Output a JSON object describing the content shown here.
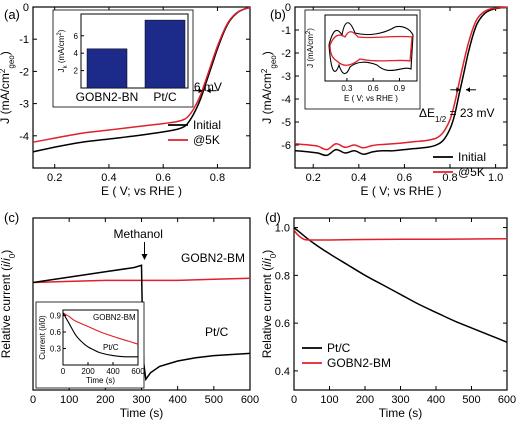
{
  "panels": [
    {
      "id": "a",
      "panel_label": "(a)",
      "type": "line",
      "xlabel": "E ( V; vs RHE )",
      "ylabel": "J (mA/cm²geo)",
      "xlim": [
        0.12,
        0.92
      ],
      "ylim": [
        -5.0,
        0.0
      ],
      "xticks": [
        0.2,
        0.4,
        0.6,
        0.8
      ],
      "xtick_labels": [
        "0.2",
        "0.4",
        "0.6",
        "0.8"
      ],
      "yticks": [
        -4,
        -3,
        -2,
        -1,
        0
      ],
      "ytick_labels": [
        "-4",
        "-3",
        "-2",
        "-1",
        "0"
      ],
      "legend": [
        "Initial",
        "@5K"
      ],
      "legend_position": "bottom-right",
      "series": [
        {
          "name": "Initial",
          "color": "#000000",
          "x": [
            0.12,
            0.2,
            0.3,
            0.4,
            0.5,
            0.6,
            0.65,
            0.68,
            0.7,
            0.72,
            0.74,
            0.76,
            0.78,
            0.8,
            0.82,
            0.84,
            0.86,
            0.88,
            0.9,
            0.92
          ],
          "y": [
            -4.5,
            -4.35,
            -4.2,
            -4.1,
            -4.0,
            -3.88,
            -3.8,
            -3.7,
            -3.5,
            -3.2,
            -2.8,
            -2.3,
            -1.8,
            -1.3,
            -0.85,
            -0.5,
            -0.28,
            -0.14,
            -0.06,
            -0.02
          ]
        },
        {
          "name": "@5K",
          "color": "#e0202a",
          "x": [
            0.12,
            0.2,
            0.3,
            0.4,
            0.5,
            0.6,
            0.65,
            0.68,
            0.7,
            0.72,
            0.74,
            0.76,
            0.78,
            0.8,
            0.82,
            0.84,
            0.86,
            0.88,
            0.9,
            0.92
          ],
          "y": [
            -4.2,
            -4.07,
            -3.92,
            -3.82,
            -3.72,
            -3.62,
            -3.56,
            -3.48,
            -3.32,
            -3.05,
            -2.68,
            -2.2,
            -1.7,
            -1.22,
            -0.8,
            -0.47,
            -0.26,
            -0.13,
            -0.06,
            -0.02
          ]
        }
      ],
      "annotation": "ΔE1/2 = 6 mV",
      "inset": {
        "type": "bar",
        "categories": [
          "GOBN2-BN",
          "Pt/C"
        ],
        "values": [
          4.5,
          7.8
        ],
        "ylim": [
          0,
          8.5
        ],
        "yticks": [
          2,
          4,
          6
        ],
        "ytick_labels": [
          "2",
          "4",
          "6"
        ],
        "ylabel": "Jk (mA/cm²)",
        "bar_color": "#1c2a8a"
      }
    },
    {
      "id": "b",
      "panel_label": "(b)",
      "type": "line",
      "xlabel": "E ( V; vs RHE )",
      "ylabel": "J (mA/cm²geo)",
      "xlim": [
        0.12,
        1.05
      ],
      "ylim": [
        -7.0,
        0.0
      ],
      "xticks": [
        0.2,
        0.4,
        0.6,
        0.8,
        1.0
      ],
      "xtick_labels": [
        "0.2",
        "0.4",
        "0.6",
        "0.8",
        "1.0"
      ],
      "yticks": [
        -6,
        -5,
        -4,
        -3,
        -2,
        -1,
        0
      ],
      "ytick_labels": [
        "-6",
        "-5",
        "-4",
        "-3",
        "-2",
        "-1",
        "0"
      ],
      "legend": [
        "Initial",
        "@5K"
      ],
      "legend_position": "bottom-right",
      "series": [
        {
          "name": "Initial",
          "color": "#000000",
          "x": [
            0.12,
            0.18,
            0.22,
            0.26,
            0.3,
            0.34,
            0.38,
            0.42,
            0.46,
            0.5,
            0.55,
            0.6,
            0.65,
            0.7,
            0.74,
            0.77,
            0.8,
            0.82,
            0.84,
            0.86,
            0.88,
            0.9,
            0.92,
            0.95,
            0.98,
            1.02,
            1.05
          ],
          "y": [
            -6.25,
            -6.3,
            -6.35,
            -6.45,
            -6.2,
            -6.35,
            -6.25,
            -6.4,
            -6.3,
            -6.25,
            -6.25,
            -6.2,
            -6.15,
            -6.1,
            -6.0,
            -5.8,
            -5.3,
            -4.7,
            -3.8,
            -2.9,
            -2.0,
            -1.25,
            -0.7,
            -0.3,
            -0.12,
            -0.04,
            -0.02
          ]
        },
        {
          "name": "@5K",
          "color": "#e0202a",
          "x": [
            0.12,
            0.18,
            0.22,
            0.26,
            0.3,
            0.34,
            0.38,
            0.42,
            0.46,
            0.5,
            0.55,
            0.6,
            0.65,
            0.7,
            0.74,
            0.77,
            0.8,
            0.82,
            0.84,
            0.86,
            0.88,
            0.9,
            0.92,
            0.95,
            0.98,
            1.02,
            1.05
          ],
          "y": [
            -5.95,
            -6.0,
            -6.05,
            -6.2,
            -5.95,
            -6.1,
            -6.0,
            -6.12,
            -6.02,
            -5.98,
            -5.95,
            -5.9,
            -5.85,
            -5.8,
            -5.7,
            -5.45,
            -4.9,
            -4.2,
            -3.3,
            -2.4,
            -1.6,
            -0.95,
            -0.5,
            -0.2,
            -0.08,
            -0.03,
            -0.01
          ]
        }
      ],
      "annotation": "ΔE1/2 = 23 mV",
      "inset": {
        "type": "line",
        "xlim": [
          0.05,
          1.1
        ],
        "xticks": [
          0.3,
          0.6,
          0.9
        ],
        "xtick_labels": [
          "0.3",
          "0.6",
          "0.9"
        ],
        "xlabel": "E ( V; vs RHE )",
        "ylabel": "J (mA/cm²)",
        "series": [
          {
            "name": "Initial",
            "color": "#000000"
          },
          {
            "name": "@5K",
            "color": "#e0202a"
          }
        ]
      }
    },
    {
      "id": "c",
      "panel_label": "(c)",
      "type": "line",
      "xlabel": "Time (s)",
      "ylabel": "Relative current (i/i0)",
      "xlim": [
        0,
        600
      ],
      "ylim": [
        0.0,
        1.6
      ],
      "xticks": [
        0,
        100,
        200,
        300,
        400,
        500,
        600
      ],
      "xtick_labels": [
        "0",
        "100",
        "200",
        "300",
        "400",
        "500",
        "600"
      ],
      "yticks": [],
      "ytick_labels": [],
      "annotation": "Methanol",
      "series": [
        {
          "name": "GOBN2-BM",
          "color": "#e0202a",
          "x": [
            0,
            100,
            200,
            300,
            310,
            400,
            500,
            600
          ],
          "y": [
            1.0,
            1.01,
            1.02,
            1.02,
            1.02,
            1.02,
            1.03,
            1.04
          ]
        },
        {
          "name": "Pt/C",
          "color": "#000000",
          "x": [
            0,
            100,
            200,
            280,
            300,
            303,
            306,
            312,
            325,
            350,
            400,
            450,
            500,
            550,
            600
          ],
          "y": [
            1.0,
            1.05,
            1.1,
            1.14,
            1.16,
            0.55,
            0.25,
            0.1,
            0.16,
            0.22,
            0.27,
            0.3,
            0.32,
            0.33,
            0.34
          ]
        }
      ],
      "series_labels": [
        "GOBN2-BM",
        "Pt/C"
      ],
      "inset": {
        "type": "line",
        "xlim": [
          0,
          600
        ],
        "ylim": [
          0.0,
          1.0
        ],
        "xticks": [
          0,
          200,
          400,
          600
        ],
        "xtick_labels": [
          "0",
          "200",
          "400",
          "600"
        ],
        "yticks": [
          0.3,
          0.6,
          0.9
        ],
        "ytick_labels": [
          "0.3",
          "0.6",
          "0.9"
        ],
        "xlabel": "Time (s)",
        "ylabel": "Current (i/i0)",
        "series": [
          {
            "name": "GOBN2-BM",
            "color": "#e0202a",
            "x": [
              0,
              50,
              100,
              200,
              300,
              400,
              500,
              600
            ],
            "y": [
              0.95,
              0.88,
              0.8,
              0.7,
              0.6,
              0.52,
              0.45,
              0.38
            ]
          },
          {
            "name": "Pt/C",
            "color": "#000000",
            "x": [
              0,
              50,
              100,
              150,
              200,
              250,
              300,
              400,
              500,
              600
            ],
            "y": [
              0.95,
              0.75,
              0.55,
              0.42,
              0.33,
              0.27,
              0.22,
              0.17,
              0.15,
              0.15
            ]
          }
        ],
        "series_labels": [
          "GOBN2-BM",
          "Pt/C"
        ]
      }
    },
    {
      "id": "d",
      "panel_label": "(d)",
      "type": "line",
      "xlabel": "Time (s)",
      "ylabel": "Relative current (i/i0)",
      "xlim": [
        0,
        600
      ],
      "ylim": [
        0.32,
        1.04
      ],
      "xticks": [
        0,
        100,
        200,
        300,
        400,
        500,
        600
      ],
      "xtick_labels": [
        "0",
        "100",
        "200",
        "300",
        "400",
        "500",
        "600"
      ],
      "yticks": [
        0.4,
        0.6,
        0.8,
        1.0
      ],
      "ytick_labels": [
        "0.4",
        "0.6",
        "0.8",
        "1.0"
      ],
      "legend": [
        "Pt/C",
        "GOBN2-BM"
      ],
      "legend_position": "bottom-left",
      "series": [
        {
          "name": "Pt/C",
          "color": "#000000",
          "x": [
            0,
            50,
            100,
            150,
            200,
            250,
            300,
            350,
            400,
            450,
            500,
            550,
            600
          ],
          "y": [
            1.0,
            0.94,
            0.89,
            0.845,
            0.8,
            0.76,
            0.72,
            0.68,
            0.645,
            0.61,
            0.58,
            0.55,
            0.52
          ]
        },
        {
          "name": "GOBN2-BM",
          "color": "#e0202a",
          "x": [
            0,
            10,
            30,
            60,
            100,
            200,
            300,
            400,
            500,
            600
          ],
          "y": [
            0.99,
            0.97,
            0.95,
            0.948,
            0.948,
            0.95,
            0.951,
            0.951,
            0.952,
            0.953
          ]
        }
      ]
    }
  ]
}
